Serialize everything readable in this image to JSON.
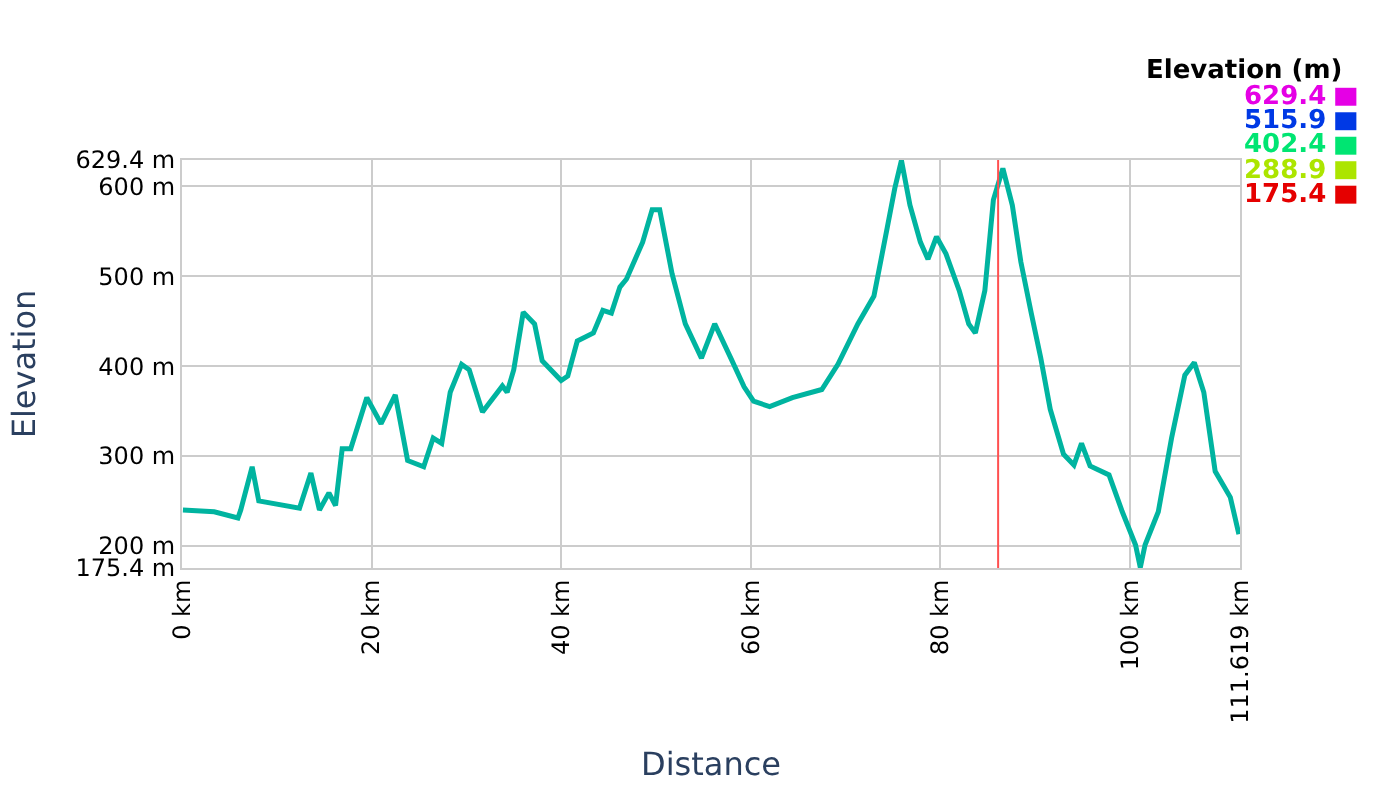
{
  "chart_data": {
    "type": "line",
    "xlabel": "Distance",
    "ylabel": "Elevation",
    "clabel": "Elevation (m)",
    "clim": [
      175.4,
      629.4
    ],
    "cticks": [
      629.4,
      515.9,
      402.4,
      288.9,
      175.4
    ],
    "x": [
      0.1,
      3.4,
      5.9,
      6.2,
      7.4,
      8.1,
      12.4,
      13.6,
      14.5,
      15.5,
      16.2,
      16.9,
      17.8,
      19.5,
      21.0,
      22.5,
      23.8,
      25.5,
      26.5,
      27.4,
      28.3,
      29.5,
      30.3,
      31.7,
      33.8,
      34.3,
      35.0,
      36.0,
      37.2,
      38.0,
      40.0,
      40.7,
      41.7,
      43.4,
      44.4,
      45.3,
      46.2,
      46.9,
      48.6,
      49.6,
      50.4,
      51.7,
      53.1,
      54.8,
      56.2,
      57.9,
      59.3,
      60.3,
      62.0,
      64.4,
      67.5,
      69.2,
      71.3,
      73.0,
      74.4,
      75.2,
      75.9,
      76.8,
      77.9,
      78.7,
      79.6,
      80.6,
      82.0,
      83.0,
      83.7,
      84.7,
      85.6,
      86.6,
      87.6,
      88.5,
      89.6,
      90.6,
      91.6,
      93.0,
      94.1,
      94.9,
      95.8,
      97.8,
      99.2,
      100.6,
      101.1,
      101.6,
      103.0,
      104.4,
      105.8,
      106.8,
      107.8,
      109.0,
      110.6,
      111.5
    ],
    "values": [
      240,
      238,
      231,
      240,
      288,
      250,
      242,
      281,
      240,
      259,
      245,
      308,
      308,
      365,
      336,
      368,
      295,
      288,
      320,
      314,
      371,
      402,
      396,
      349,
      378,
      371,
      396,
      460,
      447,
      406,
      384,
      389,
      428,
      437,
      462,
      459,
      488,
      497,
      538,
      574,
      574,
      503,
      447,
      409,
      447,
      409,
      377,
      361,
      355,
      365,
      374,
      402,
      447,
      478,
      554,
      598,
      629,
      579,
      538,
      519,
      544,
      525,
      484,
      447,
      437,
      484,
      585,
      620,
      579,
      516,
      459,
      409,
      352,
      302,
      290,
      314,
      289,
      279,
      238,
      201,
      176,
      201,
      238,
      320,
      390,
      404,
      371,
      283,
      254,
      213
    ],
    "xlim": [
      0,
      111.619
    ],
    "xticks": [
      {
        "value": 0,
        "label": "0 km"
      },
      {
        "value": 20,
        "label": "20 km"
      },
      {
        "value": 40,
        "label": "40 km"
      },
      {
        "value": 60,
        "label": "60 km"
      },
      {
        "value": 80,
        "label": "80 km"
      },
      {
        "value": 100,
        "label": "100 km"
      },
      {
        "value": 111.619,
        "label": "111.619 km"
      }
    ],
    "ylim": [
      175.4,
      629.4
    ],
    "yticks": [
      {
        "value": 175.4,
        "label": "175.4 m"
      },
      {
        "value": 200,
        "label": "200 m"
      },
      {
        "value": 300,
        "label": "300 m"
      },
      {
        "value": 400,
        "label": "400 m"
      },
      {
        "value": 500,
        "label": "500 m"
      },
      {
        "value": 600,
        "label": "600 m"
      },
      {
        "value": 629.4,
        "label": "629.4 m"
      }
    ],
    "ref_lines": [
      {
        "axis": "x",
        "value": 86.1,
        "color": "#ff5050"
      }
    ],
    "color": "#00b4a0",
    "grid": true,
    "marker": "none",
    "line_style": "solid"
  }
}
